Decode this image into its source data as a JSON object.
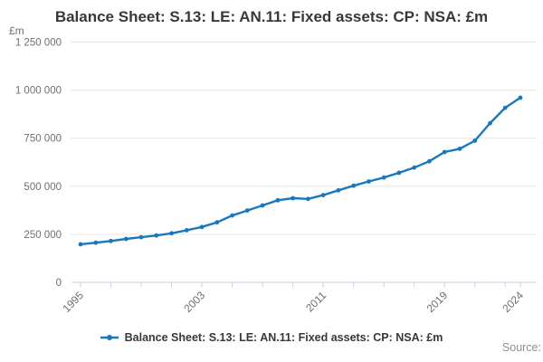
{
  "header": {
    "title": "Balance Sheet: S.13: LE: AN.11: Fixed assets: CP: NSA: £m"
  },
  "chart_data": {
    "type": "line",
    "title": "Balance Sheet: S.13: LE: AN.11: Fixed assets: CP: NSA: £m",
    "unit_label": "£m",
    "xlabel": "",
    "ylabel": "£m",
    "x": [
      1995,
      1996,
      1997,
      1998,
      1999,
      2000,
      2001,
      2002,
      2003,
      2004,
      2005,
      2006,
      2007,
      2008,
      2009,
      2010,
      2011,
      2012,
      2013,
      2014,
      2015,
      2016,
      2017,
      2018,
      2019,
      2020,
      2021,
      2022,
      2023,
      2024
    ],
    "series": [
      {
        "name": "Balance Sheet: S.13: LE: AN.11: Fixed assets: CP: NSA: £m",
        "values": [
          198000,
          206000,
          215000,
          226000,
          235000,
          244000,
          255000,
          271000,
          288000,
          312000,
          348000,
          374000,
          400000,
          427000,
          438000,
          434000,
          454000,
          479000,
          503000,
          525000,
          545000,
          570000,
          597000,
          630000,
          678000,
          695000,
          737000,
          828000,
          908000,
          961000
        ]
      }
    ],
    "ylim": [
      0,
      1250000
    ],
    "y_ticks": [
      0,
      250000,
      500000,
      750000,
      1000000,
      1250000
    ],
    "y_tick_labels": [
      "0",
      "250 000",
      "500 000",
      "750 000",
      "1 000 000",
      "1 250 000"
    ],
    "x_labeled_ticks": [
      1995,
      2003,
      2011,
      2019,
      2024
    ],
    "x_minor_tick_step": 2,
    "grid": true,
    "legend_position": "bottom",
    "colors": {
      "line": "#1878be",
      "grid": "#e6e6e6",
      "axis": "#c6d0e2",
      "tick_text": "#6f6f6f"
    }
  },
  "legend": {
    "label": "Balance Sheet: S.13: LE: AN.11: Fixed assets: CP: NSA: £m"
  },
  "footer": {
    "source_label": "Source:"
  }
}
